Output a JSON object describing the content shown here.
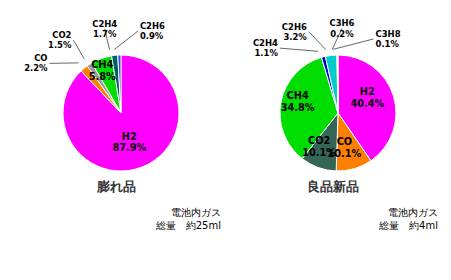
{
  "chart_data": [
    {
      "type": "pie",
      "title": "膨れ品",
      "subtitle": "電池内ガス\n総量　約25ml",
      "categories": [
        "H2",
        "CO",
        "CO2",
        "CH4",
        "C2H4",
        "C2H6"
      ],
      "values": [
        87.9,
        2.2,
        1.5,
        5.8,
        1.7,
        0.9
      ],
      "value_labels": [
        "87.9%",
        "2.2%",
        "1.5%",
        "5.8%",
        "1.7%",
        "0.9%"
      ],
      "colors": [
        "#FF00FF",
        "#FF8000",
        "#999999",
        "#00DD00",
        "#006060",
        "#4444FF"
      ],
      "data_labels": true
    },
    {
      "type": "pie",
      "title": "良品新品",
      "subtitle": "電池内ガス\n総量　約4ml",
      "categories": [
        "H2",
        "CO",
        "CO2",
        "CH4",
        "C2H4",
        "C2H6",
        "C3H6",
        "C3H8"
      ],
      "values": [
        40.4,
        10.1,
        10.1,
        34.8,
        1.1,
        3.2,
        0.2,
        0.1
      ],
      "value_labels": [
        "40.4%",
        "10.1%",
        "10.1%",
        "34.8%",
        "1.1%",
        "3.2%",
        "0.2%",
        "0.1%"
      ],
      "colors": [
        "#FF00FF",
        "#FF8000",
        "#336655",
        "#00DD00",
        "#0000CC",
        "#00CCCC",
        "#FF9999",
        "#CC66AA"
      ],
      "data_labels": true
    }
  ]
}
